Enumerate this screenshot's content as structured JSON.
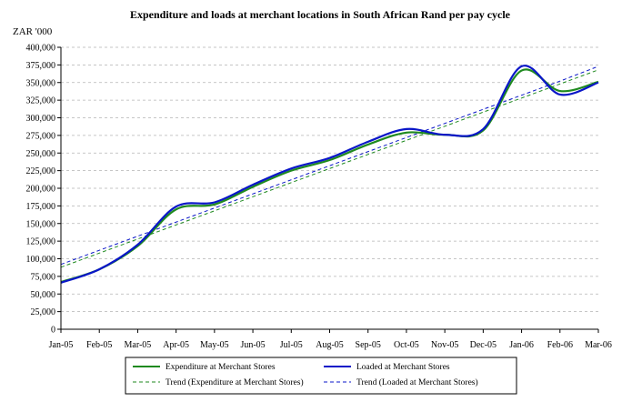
{
  "chart_data": {
    "type": "line",
    "title": "Expenditure and loads at merchant locations in South African Rand per pay cycle",
    "ylabel": "ZAR '000",
    "xlabel": "",
    "ylim": [
      0,
      400000
    ],
    "ytick_step": 25000,
    "grid": true,
    "categories": [
      "Jan-05",
      "Feb-05",
      "Mar-05",
      "Apr-05",
      "May-05",
      "Jun-05",
      "Jul-05",
      "Aug-05",
      "Sep-05",
      "Oct-05",
      "Nov-05",
      "Dec-05",
      "Jan-06",
      "Feb-06",
      "Mar-06"
    ],
    "yticks": [
      "0",
      "25,000",
      "50,000",
      "75,000",
      "100,000",
      "125,000",
      "150,000",
      "175,000",
      "200,000",
      "225,000",
      "250,000",
      "275,000",
      "300,000",
      "325,000",
      "350,000",
      "375,000",
      "400,000"
    ],
    "series": [
      {
        "name": "Expenditure at Merchant Stores",
        "color": "#1f8a1f",
        "style": "solid",
        "values": [
          67000,
          85000,
          118000,
          170000,
          177000,
          202000,
          225000,
          240000,
          262000,
          279000,
          276000,
          282000,
          367000,
          338000,
          351000
        ]
      },
      {
        "name": "Loaded at Merchant Stores",
        "color": "#0a16c8",
        "style": "solid",
        "values": [
          66000,
          85000,
          120000,
          174000,
          180000,
          205000,
          228000,
          243000,
          266000,
          284000,
          276000,
          284000,
          373000,
          333000,
          350000
        ]
      },
      {
        "name": "Trend (Expenditure at Merchant Stores)",
        "color": "#1f8a1f",
        "style": "dashed",
        "values": [
          88000,
          108000,
          128000,
          148000,
          168000,
          188000,
          208000,
          228000,
          248000,
          268000,
          288000,
          308000,
          328000,
          348000,
          368000
        ]
      },
      {
        "name": "Trend (Loaded at Merchant Stores)",
        "color": "#0a16c8",
        "style": "dashed",
        "values": [
          92000,
          112000,
          132000,
          152000,
          172000,
          192000,
          212000,
          232000,
          252000,
          272000,
          292000,
          312000,
          332000,
          352000,
          373000
        ]
      }
    ],
    "legend": {
      "position": "bottom",
      "entries": [
        "Expenditure at Merchant Stores",
        "Loaded at Merchant Stores",
        "Trend (Expenditure at Merchant Stores)",
        "Trend (Loaded at Merchant Stores)"
      ]
    }
  }
}
